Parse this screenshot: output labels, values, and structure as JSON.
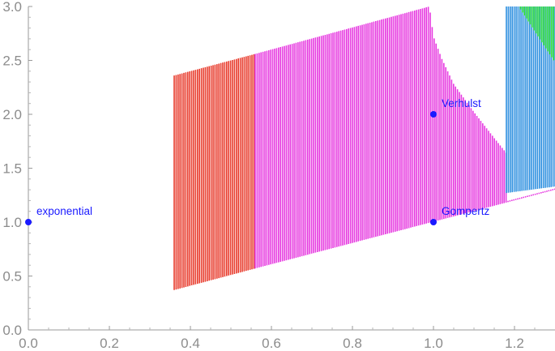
{
  "chart_data": {
    "type": "scatter",
    "title": "",
    "xlabel": "",
    "ylabel": "",
    "xlim": [
      0,
      1.3
    ],
    "ylim": [
      0,
      3.0
    ],
    "grid": false,
    "x_ticks": [
      "0.0",
      "0.2",
      "0.4",
      "0.6",
      "0.8",
      "1.0",
      "1.2"
    ],
    "y_ticks": [
      "0.0",
      "0.5",
      "1.0",
      "1.5",
      "2.0",
      "2.5",
      "3.0"
    ],
    "point_color": "#1a1aff",
    "points": [
      {
        "label": "exponential",
        "x": 0.0,
        "y": 1.0
      },
      {
        "label": "Verhulst",
        "x": 1.0,
        "y": 2.0
      },
      {
        "label": "Gompertz",
        "x": 1.0,
        "y": 1.0
      }
    ],
    "regions": [
      {
        "color": "#e83a2b",
        "description": "red hatched band",
        "x": [
          0.36,
          0.56
        ],
        "lower_y": [
          0.37,
          0.57
        ],
        "upper_y": [
          2.36,
          2.56
        ]
      },
      {
        "color": "#e639e0",
        "description": "magenta hatched band",
        "x": [
          0.56,
          1.3
        ],
        "lower_y": [
          0.57,
          1.3
        ],
        "upper_boundary": [
          [
            0.56,
            2.56
          ],
          [
            0.99,
            3.0
          ],
          [
            1.0,
            2.72
          ],
          [
            1.02,
            2.52
          ],
          [
            1.05,
            2.28
          ],
          [
            1.1,
            2.02
          ],
          [
            1.15,
            1.78
          ],
          [
            1.18,
            1.64
          ],
          [
            1.18,
            1.27
          ]
        ]
      },
      {
        "color": "#2d8fe0",
        "description": "blue hatched band",
        "x": [
          1.18,
          1.3
        ],
        "lower_y": [
          1.27,
          1.33
        ],
        "upper_y": [
          3.0,
          3.0
        ]
      },
      {
        "color": "#3ee63e",
        "description": "green hatched band",
        "boundary": [
          [
            1.21,
            3.0
          ],
          [
            1.3,
            3.0
          ],
          [
            1.3,
            2.48
          ]
        ]
      }
    ]
  }
}
